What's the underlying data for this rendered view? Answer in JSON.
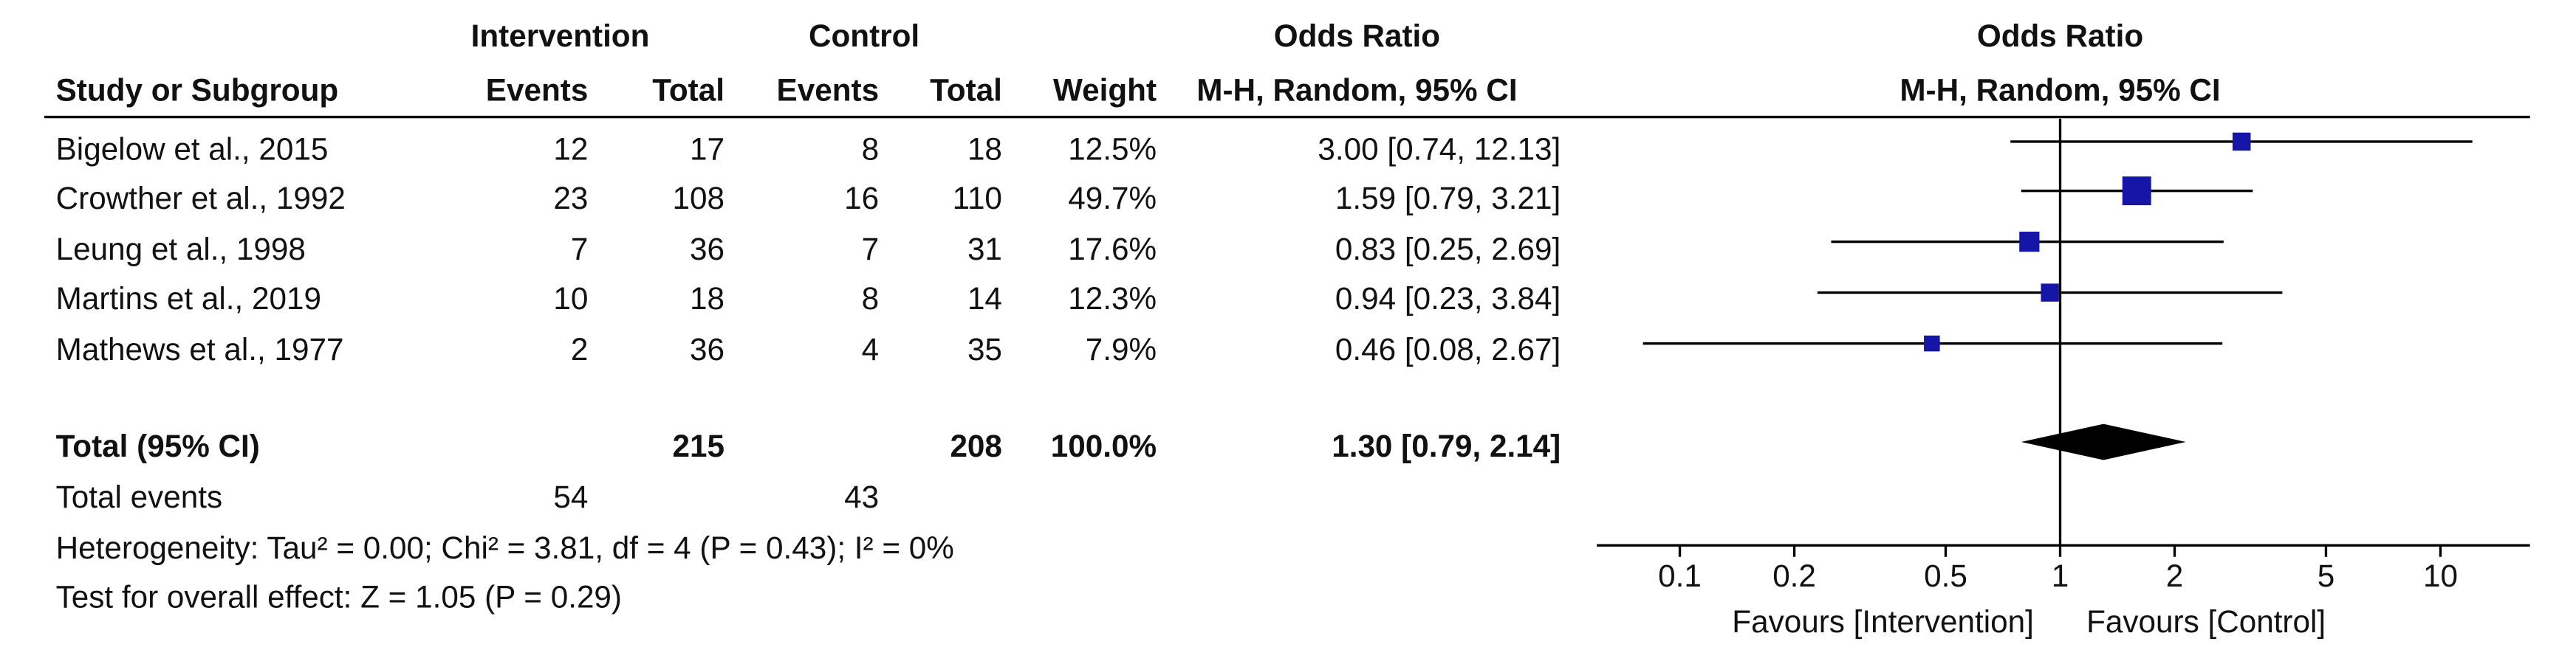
{
  "table": {
    "headers": {
      "study": "Study or Subgroup",
      "intervention_group": "Intervention",
      "control_group": "Control",
      "events": "Events",
      "total": "Total",
      "weight": "Weight",
      "or_group": "Odds Ratio",
      "or_method": "M-H, Random, 95% CI"
    },
    "rows": [
      {
        "study": "Bigelow et al., 2015",
        "int_events": "12",
        "int_total": "17",
        "ctl_events": "8",
        "ctl_total": "18",
        "weight": "12.5%",
        "ci": "3.00 [0.74, 12.13]"
      },
      {
        "study": "Crowther et al., 1992",
        "int_events": "23",
        "int_total": "108",
        "ctl_events": "16",
        "ctl_total": "110",
        "weight": "49.7%",
        "ci": "1.59 [0.79, 3.21]"
      },
      {
        "study": "Leung et al., 1998",
        "int_events": "7",
        "int_total": "36",
        "ctl_events": "7",
        "ctl_total": "31",
        "weight": "17.6%",
        "ci": "0.83 [0.25, 2.69]"
      },
      {
        "study": "Martins et al., 2019",
        "int_events": "10",
        "int_total": "18",
        "ctl_events": "8",
        "ctl_total": "14",
        "weight": "12.3%",
        "ci": "0.94 [0.23, 3.84]"
      },
      {
        "study": "Mathews et al., 1977",
        "int_events": "2",
        "int_total": "36",
        "ctl_events": "4",
        "ctl_total": "35",
        "weight": "7.9%",
        "ci": "0.46 [0.08, 2.67]"
      }
    ],
    "total_row": {
      "label": "Total (95% CI)",
      "int_total": "215",
      "ctl_total": "208",
      "weight": "100.0%",
      "ci": "1.30 [0.79, 2.14]"
    },
    "events_row": {
      "label": "Total events",
      "int_events": "54",
      "ctl_events": "43"
    },
    "heterogeneity": "Heterogeneity: Tau² = 0.00; Chi² = 3.81, df = 4 (P = 0.43); I² = 0%",
    "overall_effect": "Test for overall effect: Z = 1.05 (P = 0.29)"
  },
  "chart_data": {
    "type": "forest",
    "title": "Odds Ratio",
    "subtitle": "M-H, Random, 95% CI",
    "x_scale": "log",
    "xlim": [
      0.05,
      20
    ],
    "ticks": [
      0.1,
      0.2,
      0.5,
      1,
      2,
      5,
      10
    ],
    "tick_labels": [
      "0.1",
      "0.2",
      "0.5",
      "1",
      "2",
      "5",
      "10"
    ],
    "favours_left": "Favours [Intervention]",
    "favours_right": "Favours [Control]",
    "studies": [
      {
        "or": 3.0,
        "lo": 0.74,
        "hi": 12.13,
        "weight": 12.5
      },
      {
        "or": 1.59,
        "lo": 0.79,
        "hi": 3.21,
        "weight": 49.7
      },
      {
        "or": 0.83,
        "lo": 0.25,
        "hi": 2.69,
        "weight": 17.6
      },
      {
        "or": 0.94,
        "lo": 0.23,
        "hi": 3.84,
        "weight": 12.3
      },
      {
        "or": 0.46,
        "lo": 0.08,
        "hi": 2.67,
        "weight": 7.9
      }
    ],
    "pooled": {
      "or": 1.3,
      "lo": 0.79,
      "hi": 2.14
    },
    "marker_color": "#1515a8",
    "line_color": "#000000"
  }
}
